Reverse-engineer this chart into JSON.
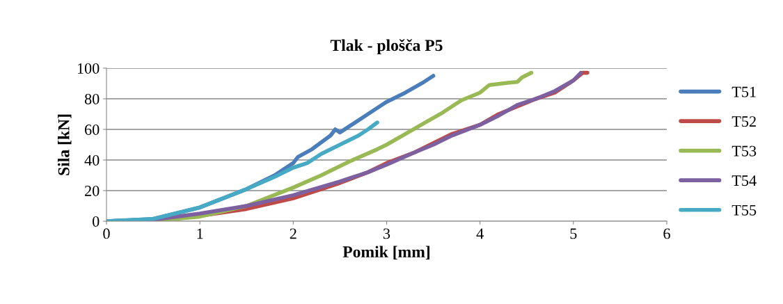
{
  "chart_data": {
    "type": "line",
    "title": "Tlak - plošča P5",
    "xlabel": "Pomik [mm]",
    "ylabel": "Sila [kN]",
    "xlim": [
      0,
      6
    ],
    "xticks": [
      0,
      1,
      2,
      3,
      4,
      5,
      6
    ],
    "ylim": [
      0,
      100
    ],
    "yticks": [
      0,
      20,
      40,
      60,
      80,
      100
    ],
    "grid": "y",
    "legend": "right",
    "marker": "none",
    "series": [
      {
        "name": "T51",
        "color": "#4a7ebb",
        "x": [
          0,
          0.5,
          1,
          1.5,
          1.8,
          2,
          2.05,
          2.2,
          2.4,
          2.45,
          2.5,
          2.6,
          2.8,
          2.95,
          3.0,
          3.2,
          3.4,
          3.5
        ],
        "values": [
          0,
          1.5,
          9,
          21,
          30,
          38,
          42,
          47,
          56,
          60,
          58,
          62,
          70,
          76,
          78,
          84,
          91,
          95
        ]
      },
      {
        "name": "T52",
        "color": "#be4b48",
        "x": [
          0,
          0.5,
          1,
          1.5,
          2,
          2.5,
          2.8,
          3,
          3.3,
          3.5,
          3.7,
          4,
          4.2,
          4.4,
          4.6,
          4.8,
          5.0,
          5.1,
          5.15
        ],
        "values": [
          0,
          0.5,
          3.5,
          8,
          15,
          25,
          32,
          38,
          45,
          51,
          57,
          63,
          70,
          75,
          80,
          84,
          92,
          97,
          97
        ]
      },
      {
        "name": "T53",
        "color": "#98b954",
        "x": [
          0,
          0.5,
          1,
          1.5,
          2,
          2.3,
          2.6,
          2.9,
          3.0,
          3.2,
          3.4,
          3.6,
          3.8,
          4.0,
          4.1,
          4.3,
          4.4,
          4.45,
          4.55
        ],
        "values": [
          0,
          0.3,
          3,
          10,
          22,
          30,
          39,
          47,
          50,
          57,
          64,
          71,
          79,
          84,
          89,
          90.5,
          91,
          94,
          97
        ]
      },
      {
        "name": "T54",
        "color": "#7d60a0",
        "x": [
          0,
          0.5,
          1,
          1.5,
          2,
          2.5,
          2.8,
          3,
          3.3,
          3.5,
          3.7,
          4,
          4.2,
          4.4,
          4.6,
          4.8,
          5.0,
          5.08
        ],
        "values": [
          0,
          1,
          5,
          10,
          17,
          26,
          32,
          37,
          45,
          50,
          56,
          63,
          69,
          76,
          80,
          85,
          92,
          97
        ]
      },
      {
        "name": "T55",
        "color": "#46aac5",
        "x": [
          0,
          0.5,
          1,
          1.5,
          1.8,
          2,
          2.15,
          2.3,
          2.5,
          2.7,
          2.8,
          2.9
        ],
        "values": [
          0,
          1.5,
          9,
          21,
          29,
          35,
          38,
          44,
          50,
          56,
          60,
          64.5
        ]
      }
    ]
  }
}
